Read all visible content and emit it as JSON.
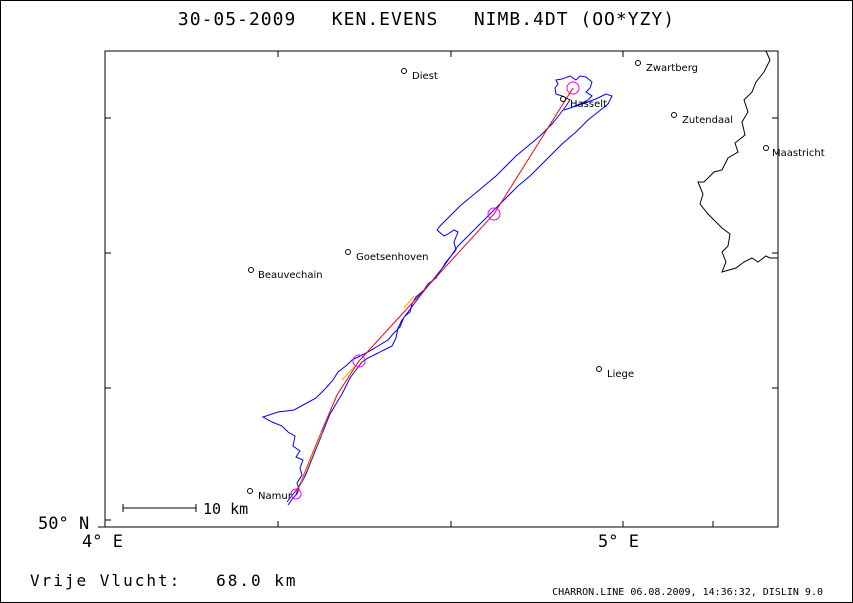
{
  "title": "30-05-2009   KEN.EVENS   NIMB.4DT (OO*YZY)",
  "axes": {
    "lat_label": "50° N",
    "lon_labels": [
      "4° E",
      "5° E"
    ]
  },
  "cities": [
    {
      "name": "Diest"
    },
    {
      "name": "Zwartberg"
    },
    {
      "name": "Hasselt"
    },
    {
      "name": "Zutendaal"
    },
    {
      "name": "Maastricht"
    },
    {
      "name": "Goetsenhoven"
    },
    {
      "name": "Beauvechain"
    },
    {
      "name": "Liege"
    },
    {
      "name": "Namur"
    }
  ],
  "scale_bar": {
    "label": "10 km"
  },
  "footer": {
    "distance": "Vrije Vlucht:   68.0 km",
    "credit": "CHARRON.LINE 06.08.2009, 14:36:32, DISLIN 9.0"
  },
  "colors": {
    "track": "#0000ff",
    "task_line": "#ff0000",
    "turnpoint": "#ff00ff",
    "border": "#000000"
  }
}
